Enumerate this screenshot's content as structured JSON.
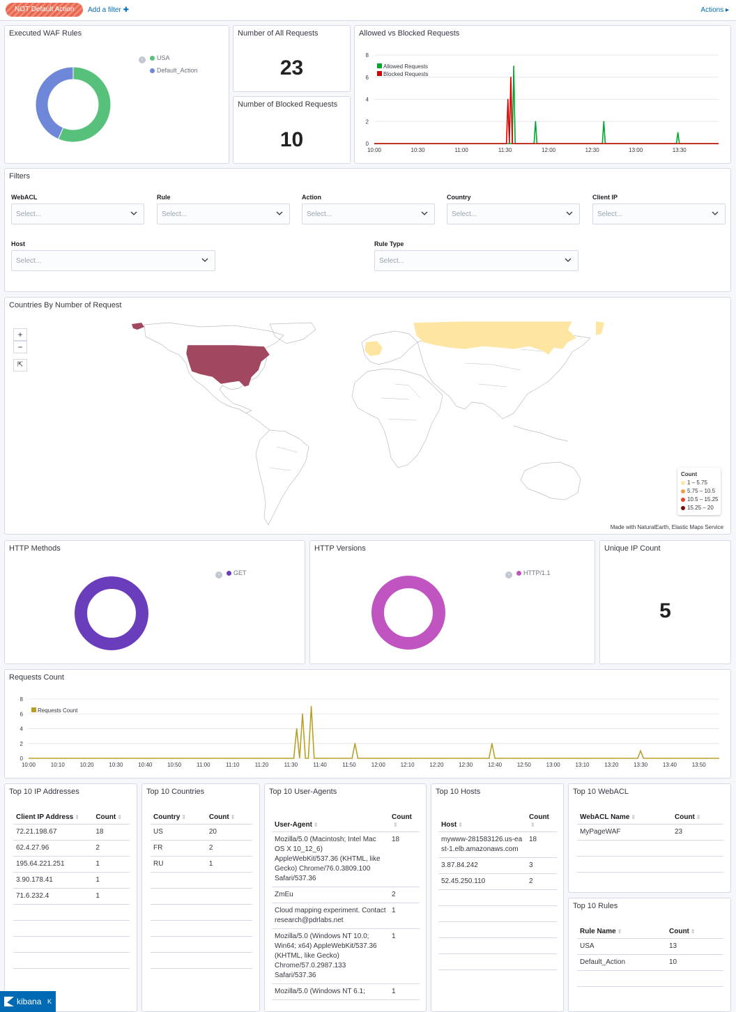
{
  "topbar": {
    "filter_pill": "NOT Default Action",
    "add_filter": "Add a filter ✚",
    "actions": "Actions ▸"
  },
  "waf_rules": {
    "title": "Executed WAF Rules",
    "legend": [
      {
        "label": "USA",
        "color": "#54b399"
      },
      {
        "label": "Default_Action",
        "color": "#6092c0"
      }
    ],
    "slices": [
      {
        "label": "USA",
        "fraction": 0.565,
        "color": "#57c17b"
      },
      {
        "label": "Default_Action",
        "fraction": 0.435,
        "color": "#6f87d8"
      }
    ]
  },
  "all_requests": {
    "title": "Number of All Requests",
    "value": "23"
  },
  "blocked_requests": {
    "title": "Number of Blocked Requests",
    "value": "10"
  },
  "allowed_vs_blocked": {
    "title": "Allowed vs Blocked Requests",
    "legend": [
      {
        "label": "Allowed Requests",
        "color": "#00a62e"
      },
      {
        "label": "Blocked Requests",
        "color": "#d70000"
      }
    ]
  },
  "filters": {
    "title": "Filters",
    "placeholder": "Select...",
    "labels": {
      "webacl": "WebACL",
      "rule": "Rule",
      "action": "Action",
      "country": "Country",
      "client_ip": "Client IP",
      "host": "Host",
      "rule_type": "Rule Type"
    }
  },
  "map": {
    "title": "Countries By Number of Request",
    "zoom_in": "+",
    "zoom_out": "−",
    "reset": "⇱",
    "legend_title": "Count",
    "legend": [
      {
        "label": "1 – 5.75",
        "color": "#fde6a8"
      },
      {
        "label": "5.75 – 10.5",
        "color": "#f39c4a"
      },
      {
        "label": "10.5 – 15.25",
        "color": "#e8412c"
      },
      {
        "label": "15.25 – 20",
        "color": "#7a0a0a"
      }
    ],
    "attribution": "Made with NaturalEarth, Elastic Maps Service"
  },
  "http_methods": {
    "title": "HTTP Methods",
    "legend": "GET",
    "color": "#6a3dbd"
  },
  "http_versions": {
    "title": "HTTP Versions",
    "legend": "HTTP/1.1",
    "color": "#c054c0"
  },
  "unique_ip": {
    "title": "Unique IP Count",
    "value": "5"
  },
  "requests_count": {
    "title": "Requests Count",
    "legend": "Requests Count",
    "color": "#b8a028"
  },
  "chart_data": [
    {
      "type": "line",
      "title": "Allowed vs Blocked Requests",
      "x_ticks": [
        "10:00",
        "10:30",
        "11:00",
        "11:30",
        "12:00",
        "12:30",
        "13:00",
        "13:30"
      ],
      "ylim": [
        0,
        8
      ],
      "y_ticks": [
        0,
        2,
        4,
        6,
        8
      ],
      "x_range_minutes": [
        0,
        237
      ],
      "series": [
        {
          "name": "Allowed Requests",
          "color": "#00a62e",
          "points": [
            [
              96,
              7
            ],
            [
              111,
              2
            ],
            [
              158,
              2
            ],
            [
              209,
              1
            ]
          ]
        },
        {
          "name": "Blocked Requests",
          "color": "#d70000",
          "points": [
            [
              92,
              4
            ],
            [
              94,
              6
            ]
          ]
        }
      ]
    },
    {
      "type": "line",
      "title": "Requests Count",
      "x_ticks": [
        "10:00",
        "10:10",
        "10:20",
        "10:30",
        "10:40",
        "10:50",
        "11:00",
        "11:10",
        "11:20",
        "11:30",
        "11:40",
        "11:50",
        "12:00",
        "12:10",
        "12:20",
        "12:30",
        "12:40",
        "12:50",
        "13:00",
        "13:10",
        "13:20",
        "13:30",
        "13:40",
        "13:50"
      ],
      "ylim": [
        0,
        8
      ],
      "y_ticks": [
        0,
        2,
        4,
        6,
        8
      ],
      "x_range_minutes": [
        0,
        237
      ],
      "series": [
        {
          "name": "Requests Count",
          "color": "#b8a028",
          "points": [
            [
              92,
              4
            ],
            [
              94,
              6
            ],
            [
              97,
              7
            ],
            [
              112,
              2
            ],
            [
              159,
              2
            ],
            [
              210,
              1
            ]
          ]
        }
      ]
    }
  ],
  "top_ips": {
    "title": "Top 10 IP Addresses",
    "headers": [
      "Client IP Address",
      "Count"
    ],
    "rows": [
      [
        "72.21.198.67",
        "18"
      ],
      [
        "62.4.27.96",
        "2"
      ],
      [
        "195.64.221.251",
        "1"
      ],
      [
        "3.90.178.41",
        "1"
      ],
      [
        "71.6.232.4",
        "1"
      ]
    ]
  },
  "top_countries": {
    "title": "Top 10 Countries",
    "headers": [
      "Country",
      "Count"
    ],
    "rows": [
      [
        "US",
        "20"
      ],
      [
        "FR",
        "2"
      ],
      [
        "RU",
        "1"
      ]
    ]
  },
  "top_agents": {
    "title": "Top 10 User-Agents",
    "headers": [
      "User-Agent",
      "Count"
    ],
    "rows": [
      [
        "Mozilla/5.0 (Macintosh; Intel Mac OS X 10_12_6) AppleWebKit/537.36 (KHTML, like Gecko) Chrome/76.0.3809.100 Safari/537.36",
        "18"
      ],
      [
        "ZmEu",
        "2"
      ],
      [
        "Cloud mapping experiment. Contact research@pdrlabs.net",
        "1"
      ],
      [
        "Mozilla/5.0 (Windows NT 10.0; Win64; x64) AppleWebKit/537.36 (KHTML, like Gecko) Chrome/57.0.2987.133 Safari/537.36",
        "1"
      ],
      [
        "Mozilla/5.0 (Windows NT 6.1;",
        "1"
      ]
    ]
  },
  "top_hosts": {
    "title": "Top 10 Hosts",
    "headers": [
      "Host",
      "Count"
    ],
    "rows": [
      [
        "mywww-281583126.us-east-1.elb.amazonaws.com",
        "18"
      ],
      [
        "3.87.84.242",
        "3"
      ],
      [
        "52.45.250.110",
        "2"
      ]
    ]
  },
  "top_webacl": {
    "title": "Top 10 WebACL",
    "headers": [
      "WebACL Name",
      "Count"
    ],
    "rows": [
      [
        "MyPageWAF",
        "23"
      ]
    ]
  },
  "top_rules": {
    "title": "Top 10 Rules",
    "headers": [
      "Rule Name",
      "Count"
    ],
    "rows": [
      [
        "USA",
        "13"
      ],
      [
        "Default_Action",
        "10"
      ]
    ]
  },
  "brand": {
    "name": "kibana",
    "collapse": "K"
  }
}
